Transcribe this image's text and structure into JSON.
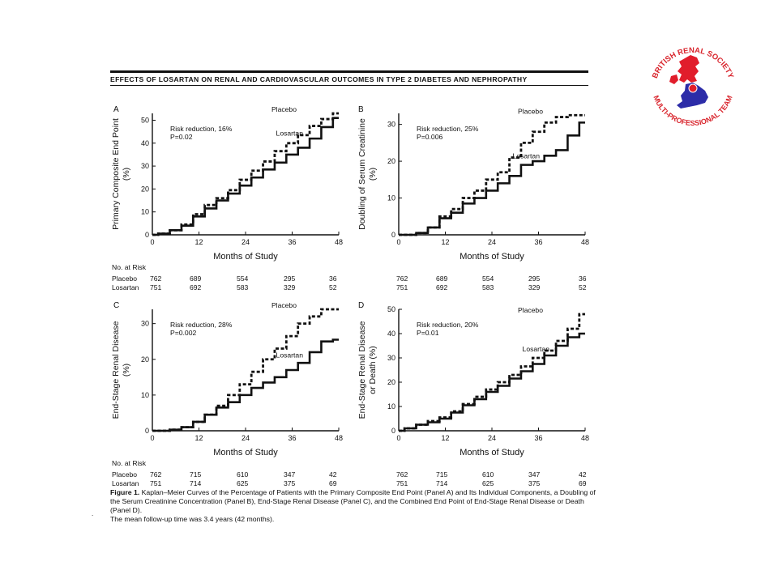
{
  "header_title": "EFFECTS OF LOSARTAN ON RENAL AND CARDIOVASCULAR OUTCOMES IN TYPE 2 DIABETES AND NEPHROPATHY",
  "logo": {
    "text_top": "BRITISH RENAL SOCIETY",
    "text_bottom": "MULTI-PROFESSIONAL TEAM",
    "colors": {
      "ring": "#d9262e",
      "north": "#e11d2b",
      "south": "#2c2ca8"
    }
  },
  "caption": {
    "figure_label": "Figure 1.",
    "text": "Kaplan–Meier Curves of the Percentage of Patients with the Primary Composite End Point (Panel A) and Its Individual Components, a Doubling of the Serum Creatinine Concentration (Panel B), End-Stage Renal Disease (Panel C), and the Combined End Point of End-Stage Renal Disease or Death (Panel D).",
    "note": "The mean follow-up time was 3.4 years (42 months)."
  },
  "risk_table_label": "No. at Risk",
  "risk_table_rows": [
    {
      "name": "Placebo",
      "ab": [
        "762",
        "689",
        "554",
        "295",
        "36"
      ],
      "cd": [
        "762",
        "715",
        "610",
        "347",
        "42"
      ]
    },
    {
      "name": "Losartan",
      "ab": [
        "751",
        "692",
        "583",
        "329",
        "52"
      ],
      "cd": [
        "751",
        "714",
        "625",
        "375",
        "69"
      ]
    }
  ],
  "chart_data": [
    {
      "panel": "A",
      "type": "line",
      "ylabel": "Primary Composite End Point (%)",
      "xlabel": "Months of Study",
      "xticks": [
        0,
        12,
        24,
        36,
        48
      ],
      "yticks": [
        0,
        10,
        20,
        30,
        40,
        50
      ],
      "xlim": [
        0,
        48
      ],
      "ylim": [
        0,
        53
      ],
      "annotation": [
        "Risk reduction, 16%",
        "P=0.02"
      ],
      "series": [
        {
          "name": "Placebo",
          "style": "dashed",
          "x": [
            0,
            3,
            6,
            9,
            12,
            15,
            18,
            21,
            24,
            27,
            30,
            33,
            36,
            39,
            42,
            45,
            48
          ],
          "y": [
            0,
            0.5,
            2,
            4.5,
            9,
            13,
            16,
            19.5,
            24,
            28,
            32,
            36.5,
            40,
            43.5,
            47.5,
            50.5,
            53
          ]
        },
        {
          "name": "Losartan",
          "style": "solid",
          "x": [
            0,
            3,
            6,
            9,
            12,
            15,
            18,
            21,
            24,
            27,
            30,
            33,
            36,
            39,
            42,
            45,
            48
          ],
          "y": [
            0,
            0.5,
            2,
            4,
            8,
            11.5,
            15,
            18,
            21.5,
            25,
            28.5,
            31.5,
            35,
            38,
            42,
            47,
            51
          ]
        }
      ]
    },
    {
      "panel": "B",
      "type": "line",
      "ylabel": "Doubling of Serum Creatinine (%)",
      "xlabel": "Months of Study",
      "xticks": [
        0,
        12,
        24,
        36,
        48
      ],
      "yticks": [
        0,
        10,
        20,
        30
      ],
      "xlim": [
        0,
        48
      ],
      "ylim": [
        0,
        33
      ],
      "annotation": [
        "Risk reduction, 25%",
        "P=0.006"
      ],
      "series": [
        {
          "name": "Placebo",
          "style": "dashed",
          "x": [
            0,
            3,
            6,
            9,
            12,
            15,
            18,
            21,
            24,
            27,
            30,
            33,
            36,
            39,
            42,
            45,
            48
          ],
          "y": [
            0,
            0,
            0.5,
            2,
            5,
            7,
            10,
            12,
            15,
            17,
            21,
            25,
            28,
            30.5,
            32,
            32.5,
            32.5
          ]
        },
        {
          "name": "Losartan",
          "style": "solid",
          "x": [
            0,
            3,
            6,
            9,
            12,
            15,
            18,
            21,
            24,
            27,
            30,
            33,
            36,
            39,
            42,
            45,
            48
          ],
          "y": [
            0,
            0,
            0.5,
            2,
            4.5,
            6,
            8.5,
            10,
            12,
            14,
            16,
            19,
            20,
            21.5,
            23,
            27,
            30.5
          ]
        }
      ]
    },
    {
      "panel": "C",
      "type": "line",
      "ylabel": "End-Stage Renal Disease (%)",
      "xlabel": "Months of Study",
      "xticks": [
        0,
        12,
        24,
        36,
        48
      ],
      "yticks": [
        0,
        10,
        20,
        30
      ],
      "xlim": [
        0,
        48
      ],
      "ylim": [
        0,
        34
      ],
      "annotation": [
        "Risk reduction, 28%",
        "P=0.002"
      ],
      "series": [
        {
          "name": "Placebo",
          "style": "dashed",
          "x": [
            0,
            3,
            6,
            9,
            12,
            15,
            18,
            21,
            24,
            27,
            30,
            33,
            36,
            39,
            42,
            45,
            48
          ],
          "y": [
            0,
            0,
            0.3,
            1,
            2.5,
            4.5,
            7,
            10,
            13,
            16.5,
            20,
            23,
            26.5,
            30,
            32,
            34,
            34
          ]
        },
        {
          "name": "Losartan",
          "style": "solid",
          "x": [
            0,
            3,
            6,
            9,
            12,
            15,
            18,
            21,
            24,
            27,
            30,
            33,
            36,
            39,
            42,
            45,
            48
          ],
          "y": [
            0,
            0,
            0.3,
            1,
            2.5,
            4.5,
            6.5,
            8,
            10,
            12,
            13.5,
            15,
            17,
            19,
            22,
            25,
            25.5
          ]
        }
      ]
    },
    {
      "panel": "D",
      "type": "line",
      "ylabel": "End-Stage Renal Disease or Death (%)",
      "xlabel": "Months of Study",
      "xticks": [
        0,
        12,
        24,
        36,
        48
      ],
      "yticks": [
        0,
        10,
        20,
        30,
        40,
        50
      ],
      "xlim": [
        0,
        48
      ],
      "ylim": [
        0,
        50
      ],
      "annotation": [
        "Risk reduction, 20%",
        "P=0.01"
      ],
      "series": [
        {
          "name": "Placebo",
          "style": "dashed",
          "x": [
            0,
            3,
            6,
            9,
            12,
            15,
            18,
            21,
            24,
            27,
            30,
            33,
            36,
            39,
            42,
            45,
            48
          ],
          "y": [
            0,
            1,
            2.5,
            4,
            5.5,
            8,
            11,
            14,
            17,
            20,
            23,
            26.5,
            30,
            33,
            37,
            42,
            48
          ]
        },
        {
          "name": "Losartan",
          "style": "solid",
          "x": [
            0,
            3,
            6,
            9,
            12,
            15,
            18,
            21,
            24,
            27,
            30,
            33,
            36,
            39,
            42,
            45,
            48
          ],
          "y": [
            0,
            1,
            2.5,
            3.5,
            5,
            7.5,
            10.5,
            13,
            16,
            18.5,
            21.5,
            24.5,
            27.5,
            31,
            35,
            38.5,
            40
          ]
        }
      ]
    }
  ]
}
